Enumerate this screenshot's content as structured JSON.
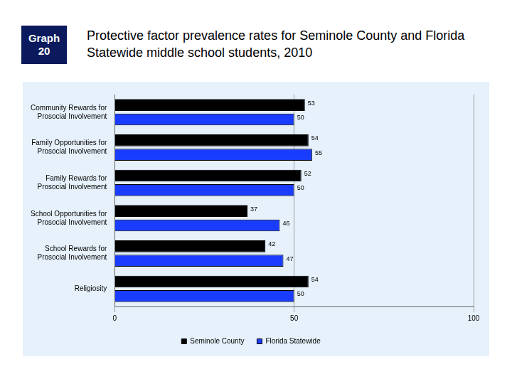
{
  "chart_data": {
    "type": "bar",
    "orientation": "horizontal",
    "figure_label": "Graph 20",
    "title": "Protective factor prevalence rates for Seminole County and Florida Statewide middle school students, 2010",
    "categories": [
      [
        "Community Rewards for",
        "Prosocial Involvement"
      ],
      [
        "Family Opportunities for",
        "Prosocial Involvement"
      ],
      [
        "Family Rewards for",
        "Prosocial Involvement"
      ],
      [
        "School Opportunities for",
        "Prosocial Involvement"
      ],
      [
        "School Rewards for",
        "Prosocial Involvement"
      ],
      [
        "Religiosity"
      ]
    ],
    "series": [
      {
        "name": "Seminole County",
        "color": "#000000",
        "values": [
          53,
          54,
          52,
          37,
          42,
          54
        ]
      },
      {
        "name": "Florida Statewide",
        "color": "#1a3cff",
        "values": [
          50,
          55,
          50,
          46,
          47,
          50
        ]
      }
    ],
    "xlim": [
      0,
      100
    ],
    "xticks": [
      0,
      50,
      100
    ],
    "grid": true,
    "legend": "bottom",
    "data_labels": true
  }
}
